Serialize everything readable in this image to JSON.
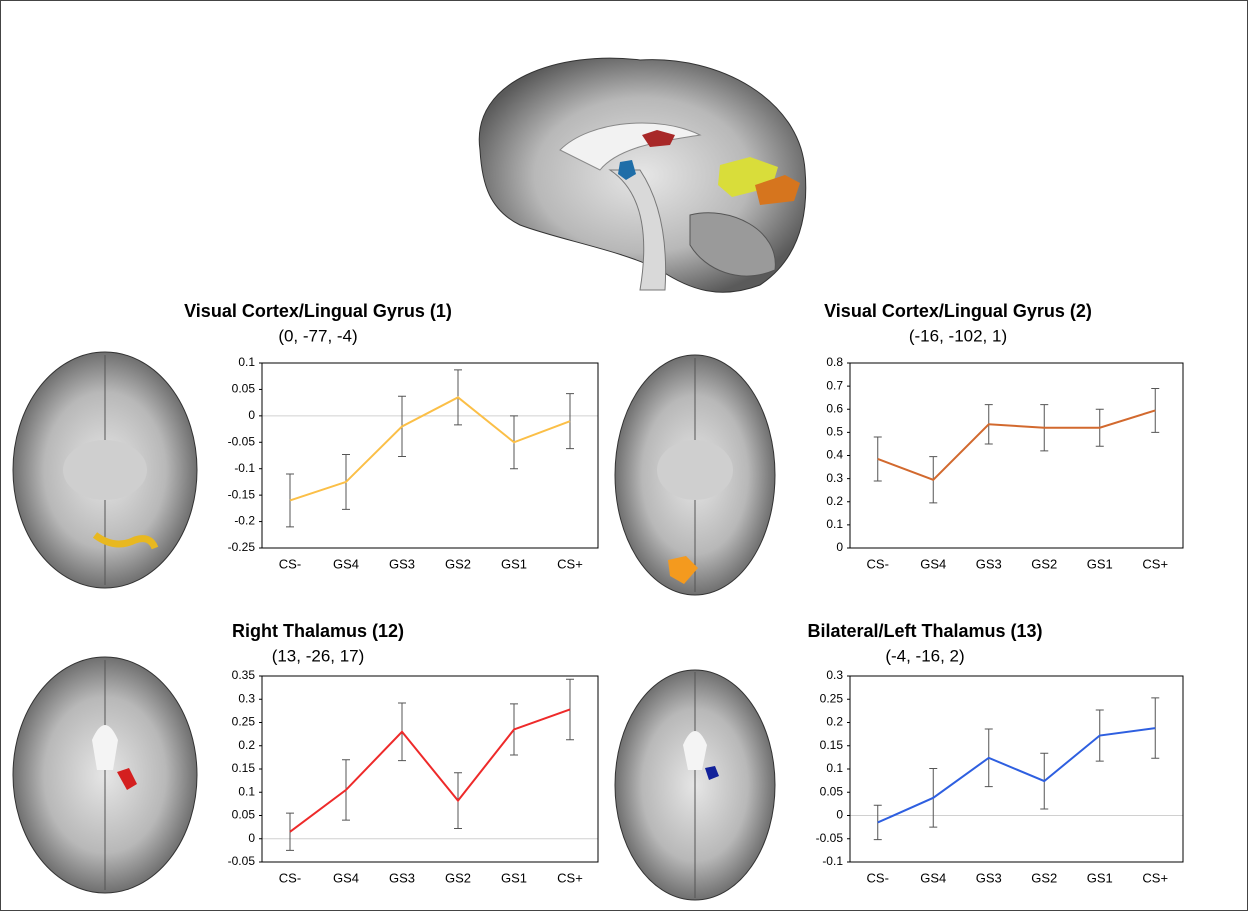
{
  "chart_data": [
    {
      "type": "line",
      "title": "Visual Cortex/Lingual Gyrus (1)",
      "subtitle": "(0, -77, -4)",
      "categories": [
        "CS-",
        "GS4",
        "GS3",
        "GS2",
        "GS1",
        "CS+"
      ],
      "values": [
        -0.16,
        -0.125,
        -0.02,
        0.035,
        -0.05,
        -0.01
      ],
      "errors": [
        0.05,
        0.052,
        0.057,
        0.052,
        0.05,
        0.052
      ],
      "color": "#fbbf47",
      "ylim": [
        -0.25,
        0.1
      ],
      "yticks": [
        -0.25,
        -0.2,
        -0.15,
        -0.1,
        -0.05,
        0,
        0.05,
        0.1
      ],
      "zero_line": true
    },
    {
      "type": "line",
      "title": "Visual Cortex/Lingual Gyrus (2)",
      "subtitle": "(-16, -102, 1)",
      "categories": [
        "CS-",
        "GS4",
        "GS3",
        "GS2",
        "GS1",
        "CS+"
      ],
      "values": [
        0.385,
        0.295,
        0.535,
        0.52,
        0.52,
        0.595
      ],
      "errors": [
        0.095,
        0.1,
        0.085,
        0.1,
        0.08,
        0.095
      ],
      "color": "#d2692e",
      "ylim": [
        0,
        0.8
      ],
      "yticks": [
        0,
        0.1,
        0.2,
        0.3,
        0.4,
        0.5,
        0.6,
        0.7,
        0.8
      ],
      "zero_line": false
    },
    {
      "type": "line",
      "title": "Right Thalamus (12)",
      "subtitle": "(13, -26, 17)",
      "categories": [
        "CS-",
        "GS4",
        "GS3",
        "GS2",
        "GS1",
        "CS+"
      ],
      "values": [
        0.015,
        0.105,
        0.23,
        0.082,
        0.235,
        0.278
      ],
      "errors": [
        0.04,
        0.065,
        0.062,
        0.06,
        0.055,
        0.065
      ],
      "color": "#ee2a2a",
      "ylim": [
        -0.05,
        0.35
      ],
      "yticks": [
        -0.05,
        0,
        0.05,
        0.1,
        0.15,
        0.2,
        0.25,
        0.3,
        0.35
      ],
      "zero_line": true
    },
    {
      "type": "line",
      "title": "Bilateral/Left Thalamus (13)",
      "subtitle": "(-4, -16, 2)",
      "categories": [
        "CS-",
        "GS4",
        "GS3",
        "GS2",
        "GS1",
        "CS+"
      ],
      "values": [
        -0.015,
        0.038,
        0.124,
        0.074,
        0.172,
        0.188
      ],
      "errors": [
        0.037,
        0.063,
        0.062,
        0.06,
        0.055,
        0.065
      ],
      "color": "#2e5fe0",
      "ylim": [
        -0.1,
        0.3
      ],
      "yticks": [
        -0.1,
        -0.05,
        0,
        0.05,
        0.1,
        0.15,
        0.2,
        0.25,
        0.3
      ],
      "zero_line": true
    }
  ]
}
